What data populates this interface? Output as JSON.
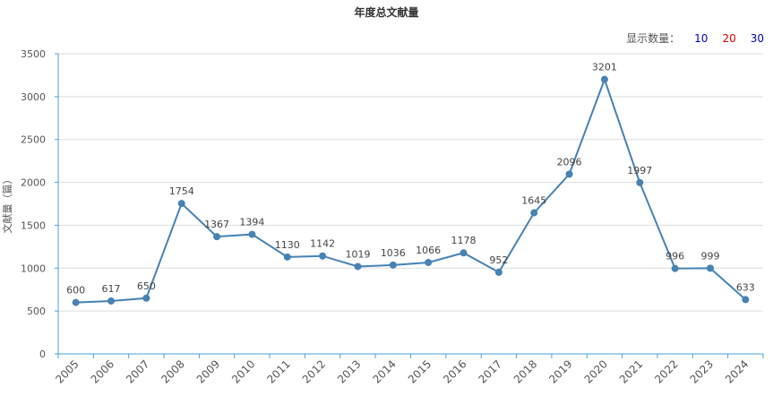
{
  "chart_data": {
    "type": "line",
    "title": "年度总文献量",
    "ylabel": "文献量（篇）",
    "xlabel": "",
    "categories": [
      "2005",
      "2006",
      "2007",
      "2008",
      "2009",
      "2010",
      "2011",
      "2012",
      "2013",
      "2014",
      "2015",
      "2016",
      "2017",
      "2018",
      "2019",
      "2020",
      "2021",
      "2022",
      "2023",
      "2024"
    ],
    "values": [
      600,
      617,
      650,
      1754,
      1367,
      1394,
      1130,
      1142,
      1019,
      1036,
      1066,
      1178,
      952,
      1645,
      2096,
      3201,
      1997,
      996,
      999,
      633
    ],
    "ylim": [
      0,
      3500
    ],
    "yticks": [
      0,
      500,
      1000,
      1500,
      2000,
      2500,
      3000,
      3500
    ],
    "grid": true,
    "line_color": "#4682b4"
  },
  "controls": {
    "display_count_label": "显示数量：",
    "options": [
      {
        "label": "10",
        "color": "#0000cc"
      },
      {
        "label": "20",
        "color": "#dd0000"
      },
      {
        "label": "30",
        "color": "#0000cc"
      }
    ]
  }
}
